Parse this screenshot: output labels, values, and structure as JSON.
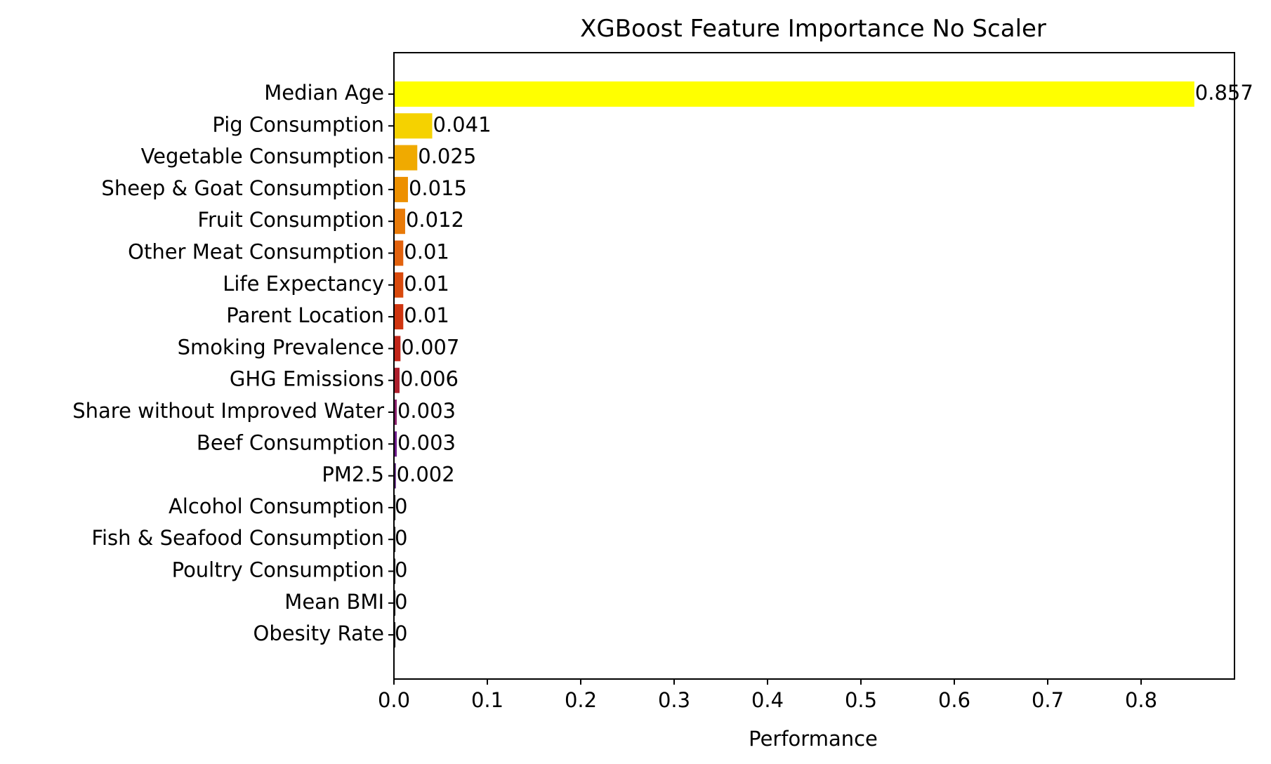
{
  "chart_data": {
    "type": "bar",
    "orientation": "horizontal",
    "title": "XGBoost Feature Importance No Scaler",
    "xlabel": "Performance",
    "ylabel": "",
    "xlim": [
      0,
      0.9
    ],
    "xticks": [
      0.0,
      0.1,
      0.2,
      0.3,
      0.4,
      0.5,
      0.6,
      0.7,
      0.8
    ],
    "xtick_labels": [
      "0.0",
      "0.1",
      "0.2",
      "0.3",
      "0.4",
      "0.5",
      "0.6",
      "0.7",
      "0.8"
    ],
    "grid": false,
    "legend": "none",
    "categories": [
      "Median Age",
      "Pig Consumption",
      "Vegetable Consumption",
      "Sheep & Goat Consumption",
      "Fruit Consumption",
      "Other Meat Consumption",
      "Life Expectancy",
      "Parent Location",
      "Smoking Prevalence",
      "GHG Emissions",
      "Share without Improved Water",
      "Beef Consumption",
      "PM2.5",
      "Alcohol Consumption",
      "Fish & Seafood Consumption",
      "Poultry Consumption",
      "Mean BMI",
      "Obesity Rate"
    ],
    "values": [
      0.857,
      0.041,
      0.025,
      0.015,
      0.012,
      0.01,
      0.01,
      0.01,
      0.007,
      0.006,
      0.003,
      0.003,
      0.002,
      0,
      0,
      0,
      0,
      0
    ],
    "value_labels": [
      "0.857",
      "0.041",
      "0.025",
      "0.015",
      "0.012",
      "0.01",
      "0.01",
      "0.01",
      "0.007",
      "0.006",
      "0.003",
      "0.003",
      "0.002",
      "0",
      "0",
      "0",
      "0",
      "0"
    ],
    "colors": [
      "#ffff00",
      "#f5d200",
      "#f0aa00",
      "#ed9000",
      "#e87a08",
      "#e2620d",
      "#d94a0d",
      "#cf3510",
      "#c1261a",
      "#ad1f2d",
      "#8a1f6b",
      "#6e1a8a",
      "#4a0c6b",
      "#000000",
      "#000000",
      "#000000",
      "#000000",
      "#000000"
    ]
  }
}
